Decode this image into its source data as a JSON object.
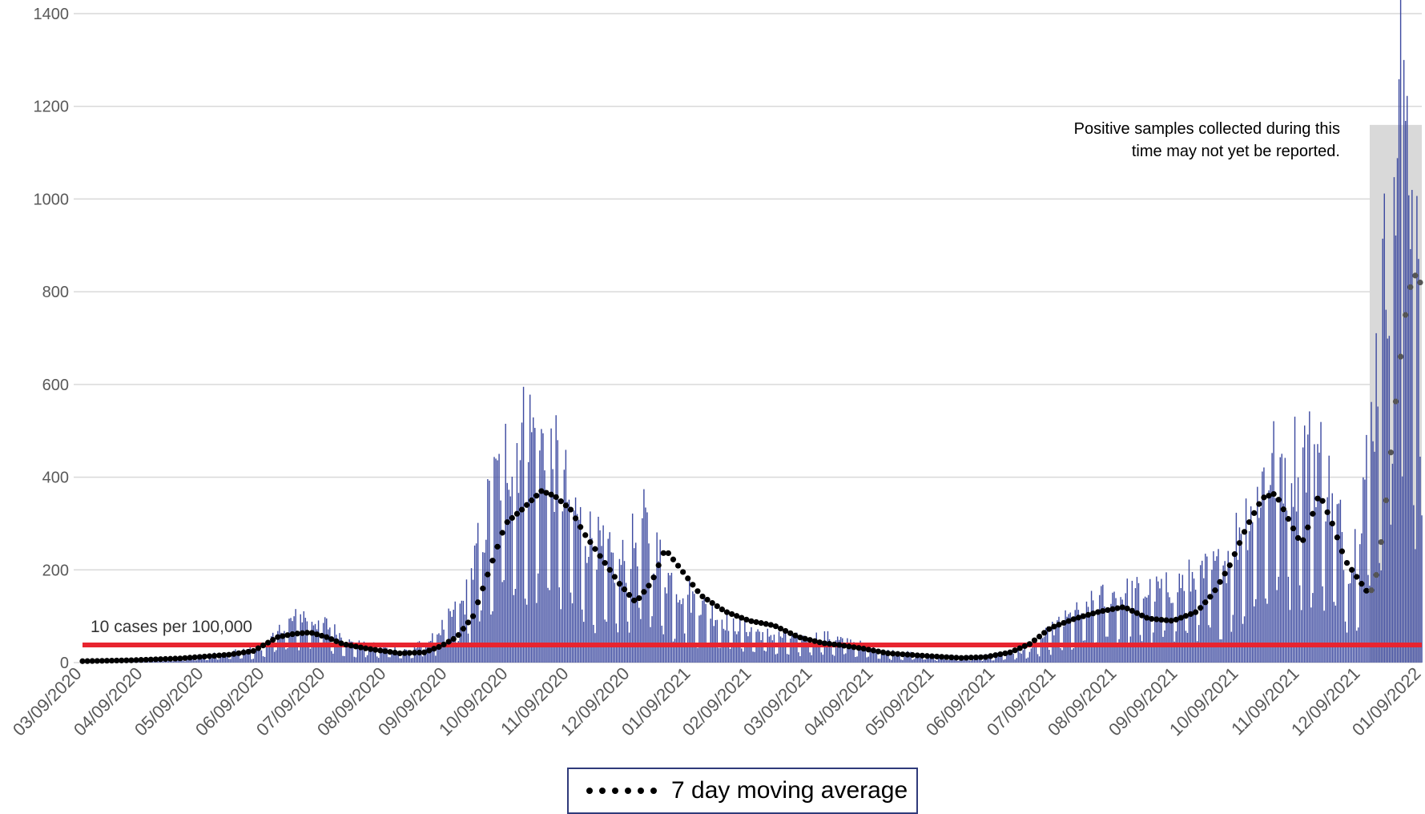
{
  "chart_data": {
    "type": "bar",
    "x_start": "03/09/2020",
    "x_end": "01/09/2022",
    "yticks": [
      0,
      200,
      400,
      600,
      800,
      1000,
      1200,
      1400
    ],
    "ylim": [
      0,
      1400
    ],
    "xtick_labels": [
      "03/09/2020",
      "04/09/2020",
      "05/09/2020",
      "06/09/2020",
      "07/09/2020",
      "08/09/2020",
      "09/09/2020",
      "10/09/2020",
      "11/09/2020",
      "12/09/2020",
      "01/09/2021",
      "02/09/2021",
      "03/09/2021",
      "04/09/2021",
      "05/09/2021",
      "06/09/2021",
      "07/09/2021",
      "08/09/2021",
      "09/09/2021",
      "10/09/2021",
      "11/09/2021",
      "12/09/2021",
      "01/09/2022"
    ],
    "series": [
      {
        "name": "",
        "kind": "bar",
        "color": "#3d4aa0",
        "envelope": [
          [
            0,
            3
          ],
          [
            30,
            6
          ],
          [
            60,
            10
          ],
          [
            90,
            20
          ],
          [
            110,
            30
          ],
          [
            125,
            80
          ],
          [
            135,
            100
          ],
          [
            150,
            80
          ],
          [
            165,
            40
          ],
          [
            200,
            25
          ],
          [
            215,
            50
          ],
          [
            235,
            130
          ],
          [
            250,
            330
          ],
          [
            260,
            440
          ],
          [
            275,
            490
          ],
          [
            290,
            420
          ],
          [
            305,
            300
          ],
          [
            320,
            230
          ],
          [
            330,
            200
          ],
          [
            345,
            290
          ],
          [
            360,
            180
          ],
          [
            380,
            120
          ],
          [
            400,
            80
          ],
          [
            420,
            60
          ],
          [
            440,
            50
          ],
          [
            455,
            55
          ],
          [
            470,
            45
          ],
          [
            490,
            25
          ],
          [
            520,
            15
          ],
          [
            550,
            12
          ],
          [
            580,
            25
          ],
          [
            600,
            80
          ],
          [
            630,
            140
          ],
          [
            660,
            150
          ],
          [
            700,
            200
          ],
          [
            730,
            420
          ],
          [
            760,
            440
          ],
          [
            780,
            200
          ],
          [
            792,
            500
          ],
          [
            805,
            1000
          ],
          [
            812,
            1250
          ],
          [
            820,
            900
          ],
          [
            823,
            300
          ]
        ]
      },
      {
        "name": "7 day moving average",
        "kind": "dots",
        "color": "#000000",
        "points": [
          [
            0,
            3
          ],
          [
            30,
            5
          ],
          [
            60,
            9
          ],
          [
            90,
            17
          ],
          [
            105,
            25
          ],
          [
            120,
            55
          ],
          [
            130,
            62
          ],
          [
            140,
            65
          ],
          [
            150,
            55
          ],
          [
            160,
            40
          ],
          [
            175,
            30
          ],
          [
            195,
            20
          ],
          [
            210,
            22
          ],
          [
            220,
            35
          ],
          [
            230,
            55
          ],
          [
            240,
            100
          ],
          [
            250,
            200
          ],
          [
            260,
            300
          ],
          [
            270,
            330
          ],
          [
            282,
            370
          ],
          [
            290,
            360
          ],
          [
            300,
            330
          ],
          [
            308,
            280
          ],
          [
            318,
            230
          ],
          [
            330,
            170
          ],
          [
            340,
            130
          ],
          [
            350,
            175
          ],
          [
            358,
            245
          ],
          [
            368,
            200
          ],
          [
            380,
            145
          ],
          [
            395,
            110
          ],
          [
            410,
            90
          ],
          [
            425,
            80
          ],
          [
            440,
            55
          ],
          [
            455,
            42
          ],
          [
            465,
            38
          ],
          [
            480,
            30
          ],
          [
            495,
            20
          ],
          [
            520,
            14
          ],
          [
            540,
            10
          ],
          [
            555,
            12
          ],
          [
            570,
            22
          ],
          [
            582,
            40
          ],
          [
            595,
            75
          ],
          [
            610,
            95
          ],
          [
            625,
            110
          ],
          [
            640,
            120
          ],
          [
            655,
            95
          ],
          [
            670,
            90
          ],
          [
            685,
            110
          ],
          [
            695,
            150
          ],
          [
            705,
            210
          ],
          [
            715,
            290
          ],
          [
            725,
            355
          ],
          [
            733,
            365
          ],
          [
            741,
            310
          ],
          [
            749,
            255
          ],
          [
            755,
            310
          ],
          [
            760,
            365
          ],
          [
            768,
            300
          ],
          [
            776,
            220
          ],
          [
            786,
            170
          ],
          [
            791,
            145
          ],
          [
            796,
            200
          ],
          [
            802,
            380
          ],
          [
            808,
            600
          ],
          [
            814,
            780
          ],
          [
            818,
            840
          ],
          [
            823,
            815
          ]
        ]
      }
    ],
    "threshold": {
      "value": 38,
      "label": "10 cases per 100,000",
      "color": "#e8242f"
    },
    "shaded_region": {
      "x0": 791,
      "x1": 823,
      "color": "#d9d9d9"
    },
    "annotation": [
      "Positive samples collected during this",
      "time may not yet be reported."
    ],
    "legend": {
      "label": "7 day moving average",
      "position": "bottom-center"
    },
    "grid": true
  }
}
